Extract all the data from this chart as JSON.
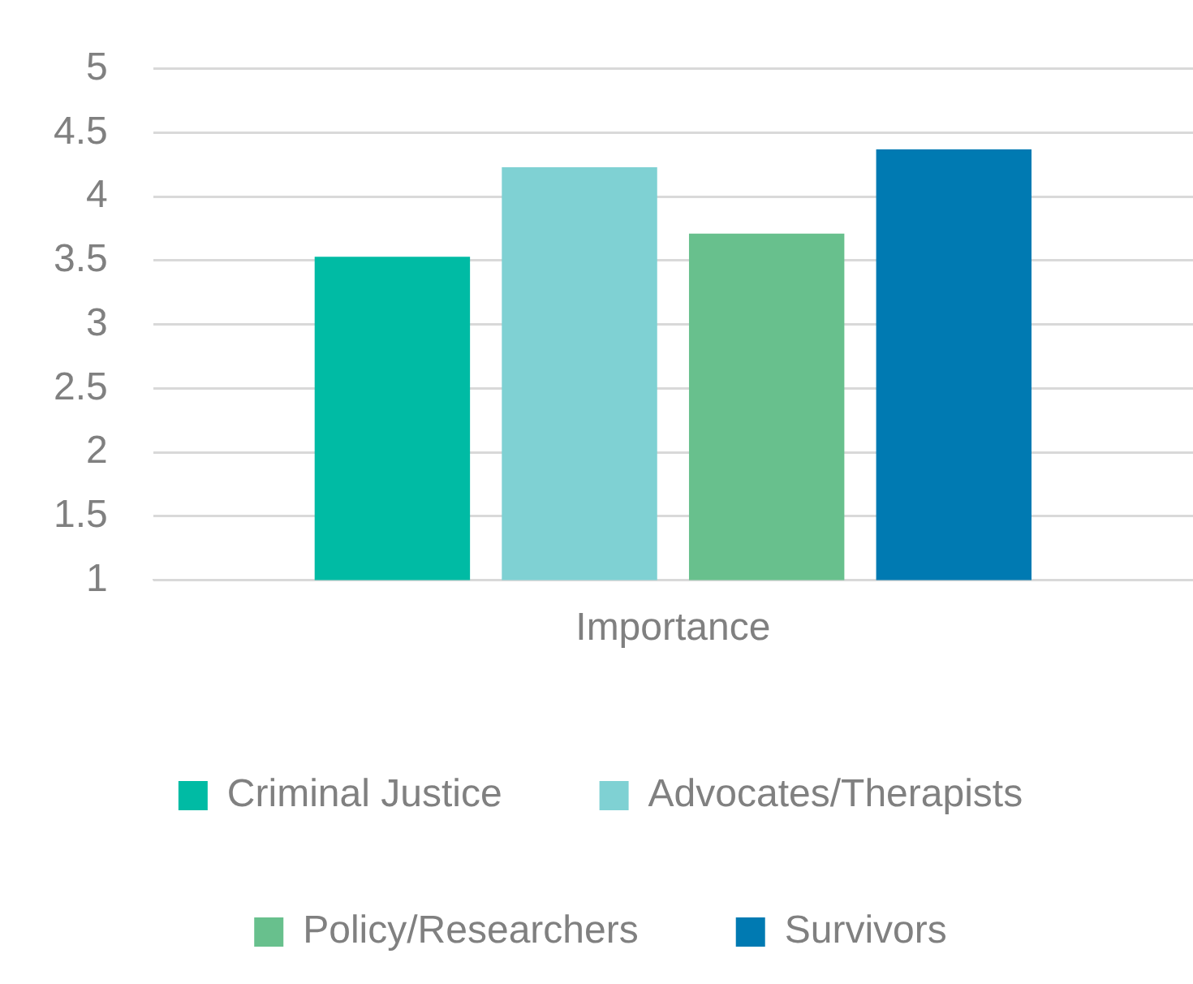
{
  "chart_data": {
    "type": "bar",
    "categories": [
      "Importance"
    ],
    "series": [
      {
        "name": "Criminal Justice",
        "color": "#00bba4",
        "values": [
          3.53
        ]
      },
      {
        "name": "Advocates/Therapists",
        "color": "#7fd1d3",
        "values": [
          4.23
        ]
      },
      {
        "name": "Policy/Researchers",
        "color": "#68c08d",
        "values": [
          3.71
        ]
      },
      {
        "name": "Survivors",
        "color": "#007ab2",
        "values": [
          4.37
        ]
      }
    ],
    "ylim": [
      1,
      5
    ],
    "yticks": [
      1,
      1.5,
      2,
      2.5,
      3,
      3.5,
      4,
      4.5,
      5
    ],
    "grid": "y",
    "legend": "bottom"
  }
}
